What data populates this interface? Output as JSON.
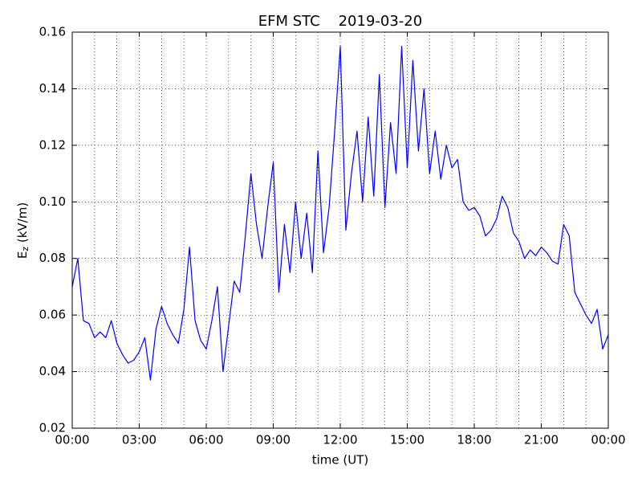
{
  "chart_data": {
    "type": "line",
    "title": "EFM STC    2019-03-20",
    "xlabel": "time (UT)",
    "ylabel": [
      "E",
      "z",
      " (kV/m)"
    ],
    "x": [
      0,
      0.25,
      0.5,
      0.75,
      1,
      1.25,
      1.5,
      1.75,
      2,
      2.25,
      2.5,
      2.75,
      3,
      3.25,
      3.5,
      3.75,
      4,
      4.25,
      4.5,
      4.75,
      5,
      5.25,
      5.5,
      5.75,
      6,
      6.25,
      6.5,
      6.75,
      7,
      7.25,
      7.5,
      7.75,
      8,
      8.25,
      8.5,
      8.75,
      9,
      9.25,
      9.5,
      9.75,
      10,
      10.25,
      10.5,
      10.75,
      11,
      11.25,
      11.5,
      11.75,
      12,
      12.25,
      12.5,
      12.75,
      13,
      13.25,
      13.5,
      13.75,
      14,
      14.25,
      14.5,
      14.75,
      15,
      15.25,
      15.5,
      15.75,
      16,
      16.25,
      16.5,
      16.75,
      17,
      17.25,
      17.5,
      17.75,
      18,
      18.25,
      18.5,
      18.75,
      19,
      19.25,
      19.5,
      19.75,
      20,
      20.25,
      20.5,
      20.75,
      21,
      21.25,
      21.5,
      21.75,
      22,
      22.25,
      22.5,
      22.75,
      23,
      23.25,
      23.5,
      23.75,
      24
    ],
    "series": [
      {
        "name": "Ez",
        "color": "#0000ff",
        "values": [
          0.07,
          0.08,
          0.058,
          0.057,
          0.052,
          0.054,
          0.052,
          0.058,
          0.05,
          0.046,
          0.043,
          0.044,
          0.047,
          0.052,
          0.037,
          0.055,
          0.063,
          0.057,
          0.053,
          0.05,
          0.062,
          0.084,
          0.058,
          0.051,
          0.048,
          0.058,
          0.07,
          0.04,
          0.056,
          0.072,
          0.068,
          0.088,
          0.11,
          0.092,
          0.08,
          0.098,
          0.114,
          0.068,
          0.092,
          0.075,
          0.1,
          0.08,
          0.096,
          0.075,
          0.118,
          0.082,
          0.098,
          0.125,
          0.155,
          0.09,
          0.11,
          0.125,
          0.1,
          0.13,
          0.102,
          0.145,
          0.098,
          0.128,
          0.11,
          0.155,
          0.112,
          0.15,
          0.118,
          0.14,
          0.11,
          0.125,
          0.108,
          0.12,
          0.112,
          0.115,
          0.1,
          0.097,
          0.098,
          0.095,
          0.088,
          0.09,
          0.094,
          0.102,
          0.098,
          0.089,
          0.086,
          0.08,
          0.083,
          0.081,
          0.084,
          0.082,
          0.079,
          0.078,
          0.092,
          0.088,
          0.068,
          0.064,
          0.06,
          0.057,
          0.062,
          0.048,
          0.053
        ]
      }
    ],
    "xlim": [
      0,
      24
    ],
    "xticks": [
      {
        "value": 0,
        "label": "00:00"
      },
      {
        "value": 3,
        "label": "03:00"
      },
      {
        "value": 6,
        "label": "06:00"
      },
      {
        "value": 9,
        "label": "09:00"
      },
      {
        "value": 12,
        "label": "12:00"
      },
      {
        "value": 15,
        "label": "15:00"
      },
      {
        "value": 18,
        "label": "18:00"
      },
      {
        "value": 21,
        "label": "21:00"
      },
      {
        "value": 24,
        "label": "00:00"
      }
    ],
    "ylim": [
      0.02,
      0.16
    ],
    "yticks": [
      0.02,
      0.04,
      0.06,
      0.08,
      {
        "value": 0.1,
        "label": "0.10"
      },
      0.12,
      0.14,
      0.16
    ],
    "grid": true
  }
}
